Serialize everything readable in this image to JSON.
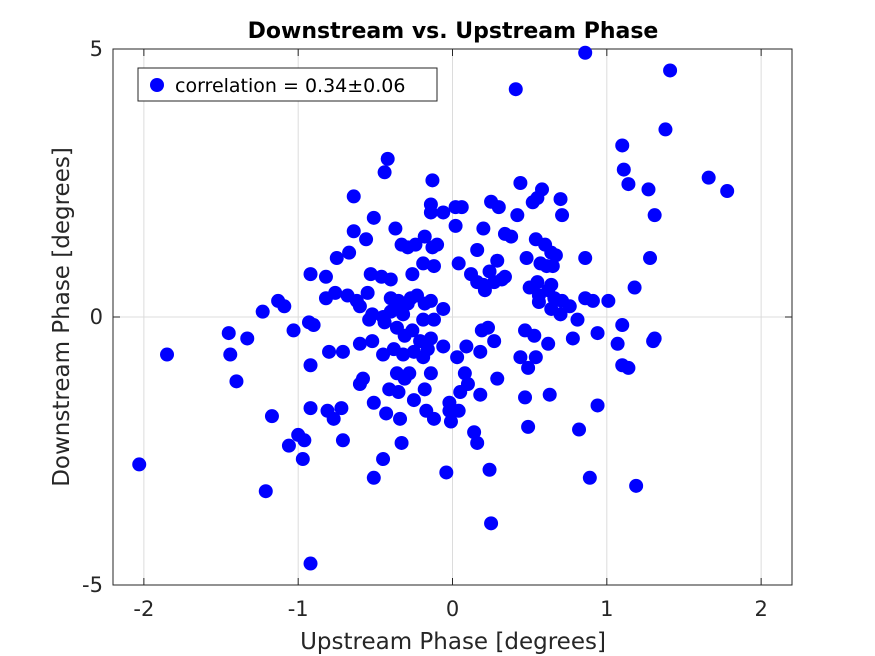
{
  "chart_data": {
    "type": "scatter",
    "title": "Downstream vs. Upstream Phase",
    "xlabel": "Upstream Phase [degrees]",
    "ylabel": "Downstream Phase [degrees]",
    "xlim": [
      -2.2,
      2.2
    ],
    "ylim": [
      -5,
      5
    ],
    "xticks": [
      -2,
      -1,
      0,
      1,
      2
    ],
    "xtick_labels": [
      "-2",
      "-1",
      "0",
      "1",
      "2"
    ],
    "yticks": [
      -5,
      0,
      5
    ],
    "ytick_labels": [
      "-5",
      "0",
      "5"
    ],
    "grid": true,
    "legend_position": "top-left",
    "series": [
      {
        "name": "correlation = 0.34±0.06",
        "color": "#0000ff",
        "marker": "circle",
        "points": [
          [
            0.86,
            4.93
          ],
          [
            1.41,
            4.6
          ],
          [
            0.41,
            4.25
          ],
          [
            1.38,
            3.5
          ],
          [
            1.1,
            3.2
          ],
          [
            1.11,
            2.75
          ],
          [
            -0.42,
            2.95
          ],
          [
            -0.44,
            2.7
          ],
          [
            1.14,
            2.48
          ],
          [
            1.27,
            2.38
          ],
          [
            1.66,
            2.6
          ],
          [
            1.78,
            2.35
          ],
          [
            1.31,
            1.9
          ],
          [
            0.44,
            2.5
          ],
          [
            -0.64,
            2.25
          ],
          [
            -0.13,
            2.55
          ],
          [
            0.58,
            2.38
          ],
          [
            0.55,
            2.22
          ],
          [
            0.52,
            2.14
          ],
          [
            0.7,
            2.2
          ],
          [
            0.71,
            1.9
          ],
          [
            0.25,
            2.15
          ],
          [
            0.3,
            2.05
          ],
          [
            0.42,
            1.9
          ],
          [
            -0.14,
            2.1
          ],
          [
            -0.14,
            1.95
          ],
          [
            -0.06,
            1.95
          ],
          [
            0.02,
            2.05
          ],
          [
            0.06,
            2.05
          ],
          [
            -0.51,
            1.85
          ],
          [
            -0.64,
            1.6
          ],
          [
            -0.56,
            1.45
          ],
          [
            -0.37,
            1.65
          ],
          [
            -0.18,
            1.5
          ],
          [
            0.02,
            1.7
          ],
          [
            0.2,
            1.65
          ],
          [
            -0.33,
            1.35
          ],
          [
            -0.29,
            1.3
          ],
          [
            -0.24,
            1.35
          ],
          [
            -0.1,
            1.35
          ],
          [
            0.34,
            1.55
          ],
          [
            0.54,
            1.45
          ],
          [
            0.6,
            1.35
          ],
          [
            0.64,
            1.2
          ],
          [
            -0.67,
            1.2
          ],
          [
            -0.75,
            1.1
          ],
          [
            -0.13,
            1.3
          ],
          [
            0.16,
            1.25
          ],
          [
            0.38,
            1.5
          ],
          [
            0.48,
            1.1
          ],
          [
            0.67,
            1.15
          ],
          [
            0.86,
            1.1
          ],
          [
            1.28,
            1.1
          ],
          [
            -0.19,
            1.0
          ],
          [
            -0.12,
            0.95
          ],
          [
            0.04,
            1.0
          ],
          [
            0.29,
            1.05
          ],
          [
            0.57,
            1.0
          ],
          [
            0.61,
            0.95
          ],
          [
            0.65,
            0.95
          ],
          [
            -0.92,
            0.8
          ],
          [
            -0.82,
            0.75
          ],
          [
            -0.53,
            0.8
          ],
          [
            -0.46,
            0.75
          ],
          [
            -0.4,
            0.7
          ],
          [
            -0.26,
            0.8
          ],
          [
            0.12,
            0.8
          ],
          [
            0.24,
            0.85
          ],
          [
            0.34,
            0.75
          ],
          [
            0.5,
            0.55
          ],
          [
            0.55,
            0.65
          ],
          [
            0.64,
            0.6
          ],
          [
            0.16,
            0.65
          ],
          [
            0.2,
            0.6
          ],
          [
            0.27,
            0.65
          ],
          [
            0.32,
            0.7
          ],
          [
            0.21,
            0.5
          ],
          [
            1.18,
            0.55
          ],
          [
            -0.82,
            0.35
          ],
          [
            -0.76,
            0.45
          ],
          [
            -0.68,
            0.4
          ],
          [
            -0.62,
            0.3
          ],
          [
            -0.55,
            0.45
          ],
          [
            -0.4,
            0.35
          ],
          [
            -0.35,
            0.3
          ],
          [
            -0.27,
            0.35
          ],
          [
            -0.23,
            0.4
          ],
          [
            -0.18,
            0.25
          ],
          [
            -0.14,
            0.3
          ],
          [
            0.56,
            0.4
          ],
          [
            0.62,
            0.5
          ],
          [
            0.56,
            0.28
          ],
          [
            0.66,
            0.35
          ],
          [
            0.71,
            0.3
          ],
          [
            0.76,
            0.2
          ],
          [
            0.86,
            0.35
          ],
          [
            0.91,
            0.3
          ],
          [
            1.01,
            0.3
          ],
          [
            0.64,
            0.15
          ],
          [
            0.7,
            0.05
          ],
          [
            -1.13,
            0.3
          ],
          [
            -1.09,
            0.2
          ],
          [
            -1.23,
            0.1
          ],
          [
            -0.6,
            0.2
          ],
          [
            -0.52,
            0.05
          ],
          [
            -0.45,
            0.0
          ],
          [
            -0.4,
            0.1
          ],
          [
            -0.36,
            0.2
          ],
          [
            -0.29,
            0.25
          ],
          [
            -0.32,
            0.05
          ],
          [
            -0.19,
            -0.05
          ],
          [
            -0.12,
            -0.05
          ],
          [
            -0.06,
            0.15
          ],
          [
            0.81,
            -0.05
          ],
          [
            1.1,
            -0.15
          ],
          [
            -1.45,
            -0.3
          ],
          [
            -1.33,
            -0.4
          ],
          [
            -0.93,
            -0.1
          ],
          [
            -0.9,
            -0.15
          ],
          [
            -1.03,
            -0.25
          ],
          [
            -0.54,
            -0.05
          ],
          [
            -0.44,
            -0.1
          ],
          [
            -0.36,
            -0.2
          ],
          [
            -0.31,
            -0.35
          ],
          [
            -0.26,
            -0.25
          ],
          [
            -0.21,
            -0.45
          ],
          [
            -0.14,
            -0.4
          ],
          [
            -0.06,
            -0.55
          ],
          [
            0.19,
            -0.25
          ],
          [
            0.23,
            -0.2
          ],
          [
            0.27,
            -0.45
          ],
          [
            0.47,
            -0.25
          ],
          [
            0.53,
            -0.35
          ],
          [
            0.62,
            -0.5
          ],
          [
            0.94,
            -0.3
          ],
          [
            1.31,
            -0.4
          ],
          [
            1.3,
            -0.45
          ],
          [
            1.07,
            -0.5
          ],
          [
            0.78,
            -0.4
          ],
          [
            -1.85,
            -0.7
          ],
          [
            -1.44,
            -0.7
          ],
          [
            -0.8,
            -0.65
          ],
          [
            -0.71,
            -0.65
          ],
          [
            -0.6,
            -0.5
          ],
          [
            -0.52,
            -0.45
          ],
          [
            -0.45,
            -0.7
          ],
          [
            -0.38,
            -0.6
          ],
          [
            -0.32,
            -0.7
          ],
          [
            -0.25,
            -0.65
          ],
          [
            -0.19,
            -0.75
          ],
          [
            -0.16,
            -0.6
          ],
          [
            0.03,
            -0.75
          ],
          [
            0.09,
            -0.55
          ],
          [
            0.18,
            -0.65
          ],
          [
            0.44,
            -0.75
          ],
          [
            0.49,
            -0.95
          ],
          [
            0.54,
            -0.75
          ],
          [
            1.1,
            -0.9
          ],
          [
            1.14,
            -0.95
          ],
          [
            -0.92,
            -0.9
          ],
          [
            -0.6,
            -1.25
          ],
          [
            -0.58,
            -1.15
          ],
          [
            -0.36,
            -1.05
          ],
          [
            -0.31,
            -1.15
          ],
          [
            -0.28,
            -1.05
          ],
          [
            -0.18,
            -1.35
          ],
          [
            -0.14,
            -1.05
          ],
          [
            -0.41,
            -1.35
          ],
          [
            -0.35,
            -1.4
          ],
          [
            0.08,
            -1.05
          ],
          [
            0.1,
            -1.25
          ],
          [
            0.29,
            -1.15
          ],
          [
            -1.4,
            -1.2
          ],
          [
            -0.51,
            -1.6
          ],
          [
            -0.43,
            -1.8
          ],
          [
            -0.34,
            -1.9
          ],
          [
            -0.25,
            -1.55
          ],
          [
            -0.17,
            -1.75
          ],
          [
            -0.12,
            -1.9
          ],
          [
            -0.02,
            -1.6
          ],
          [
            -0.02,
            -1.75
          ],
          [
            0.05,
            -1.4
          ],
          [
            0.18,
            -1.45
          ],
          [
            0.47,
            -1.5
          ],
          [
            0.63,
            -1.45
          ],
          [
            0.94,
            -1.65
          ],
          [
            -0.92,
            -1.7
          ],
          [
            -0.72,
            -1.7
          ],
          [
            -0.81,
            -1.75
          ],
          [
            -0.77,
            -1.9
          ],
          [
            -1.17,
            -1.85
          ],
          [
            -0.01,
            -1.95
          ],
          [
            0.04,
            -1.75
          ],
          [
            0.49,
            -2.05
          ],
          [
            0.82,
            -2.1
          ],
          [
            -1.0,
            -2.2
          ],
          [
            -0.96,
            -2.3
          ],
          [
            -0.71,
            -2.3
          ],
          [
            -0.33,
            -2.35
          ],
          [
            0.14,
            -2.15
          ],
          [
            0.16,
            -2.35
          ],
          [
            -1.06,
            -2.4
          ],
          [
            -0.97,
            -2.65
          ],
          [
            -0.45,
            -2.65
          ],
          [
            -2.03,
            -2.75
          ],
          [
            -0.51,
            -3.0
          ],
          [
            -0.04,
            -2.9
          ],
          [
            0.24,
            -2.85
          ],
          [
            0.89,
            -3.0
          ],
          [
            1.19,
            -3.15
          ],
          [
            -1.21,
            -3.25
          ],
          [
            0.25,
            -3.85
          ],
          [
            -0.92,
            -4.6
          ]
        ]
      }
    ]
  }
}
